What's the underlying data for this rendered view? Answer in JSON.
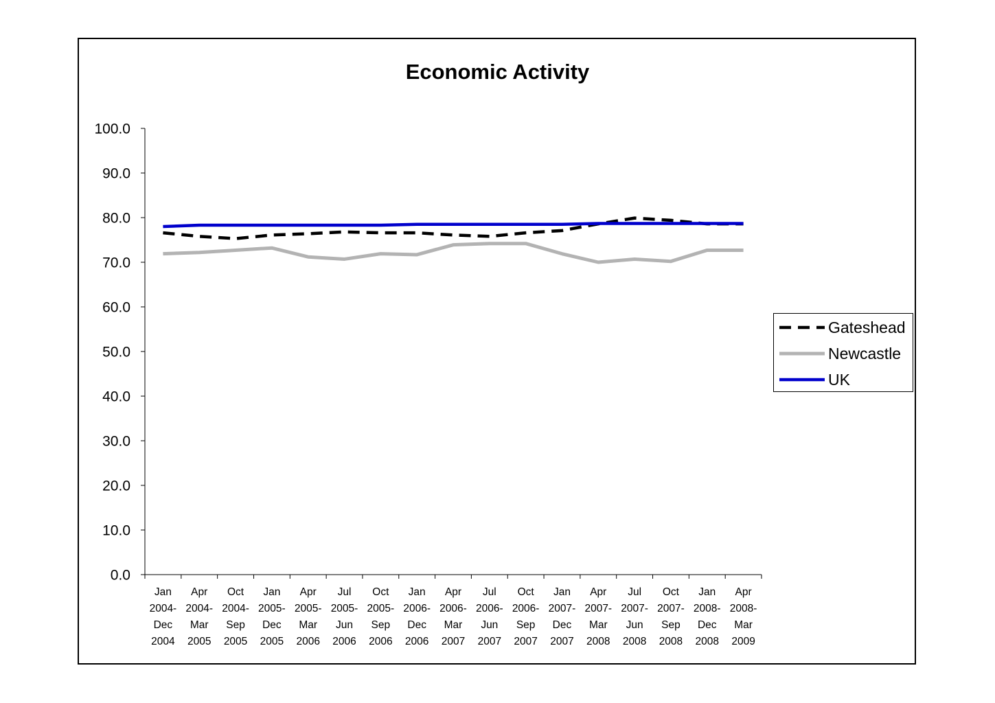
{
  "chart_data": {
    "type": "line",
    "title": "Economic Activity",
    "xlabel": "",
    "ylabel": "",
    "ylim": [
      0,
      100
    ],
    "yticks": [
      "0.0",
      "10.0",
      "20.0",
      "30.0",
      "40.0",
      "50.0",
      "60.0",
      "70.0",
      "80.0",
      "90.0",
      "100.0"
    ],
    "categories": [
      [
        "Jan",
        "2004-",
        "Dec",
        "2004"
      ],
      [
        "Apr",
        "2004-",
        "Mar",
        "2005"
      ],
      [
        "Oct",
        "2004-",
        "Sep",
        "2005"
      ],
      [
        "Jan",
        "2005-",
        "Dec",
        "2005"
      ],
      [
        "Apr",
        "2005-",
        "Mar",
        "2006"
      ],
      [
        "Jul",
        "2005-",
        "Jun",
        "2006"
      ],
      [
        "Oct",
        "2005-",
        "Sep",
        "2006"
      ],
      [
        "Jan",
        "2006-",
        "Dec",
        "2006"
      ],
      [
        "Apr",
        "2006-",
        "Mar",
        "2007"
      ],
      [
        "Jul",
        "2006-",
        "Jun",
        "2007"
      ],
      [
        "Oct",
        "2006-",
        "Sep",
        "2007"
      ],
      [
        "Jan",
        "2007-",
        "Dec",
        "2007"
      ],
      [
        "Apr",
        "2007-",
        "Mar",
        "2008"
      ],
      [
        "Jul",
        "2007-",
        "Jun",
        "2008"
      ],
      [
        "Oct",
        "2007-",
        "Sep",
        "2008"
      ],
      [
        "Jan",
        "2008-",
        "Dec",
        "2008"
      ],
      [
        "Apr",
        "2008-",
        "Mar",
        "2009"
      ]
    ],
    "series": [
      {
        "name": "Gateshead",
        "color": "#000000",
        "style": "dashed",
        "values": [
          76.6,
          75.8,
          75.3,
          76.1,
          76.4,
          76.8,
          76.6,
          76.6,
          76.1,
          75.8,
          76.6,
          77.1,
          78.6,
          79.9,
          79.4,
          78.6,
          78.6
        ]
      },
      {
        "name": "Newcastle",
        "color": "#b3b3b3",
        "style": "solid",
        "values": [
          71.9,
          72.2,
          72.7,
          73.2,
          71.2,
          70.7,
          71.9,
          71.7,
          73.9,
          74.2,
          74.2,
          71.9,
          70.0,
          70.7,
          70.2,
          72.7,
          72.7
        ]
      },
      {
        "name": "UK",
        "color": "#0000cc",
        "style": "solid",
        "values": [
          78.0,
          78.3,
          78.3,
          78.3,
          78.3,
          78.3,
          78.3,
          78.5,
          78.5,
          78.5,
          78.5,
          78.5,
          78.7,
          78.7,
          78.7,
          78.7,
          78.7
        ]
      }
    ],
    "legend": {
      "position": "right",
      "items": [
        "Gateshead",
        "Newcastle",
        "UK"
      ]
    },
    "grid": false
  }
}
